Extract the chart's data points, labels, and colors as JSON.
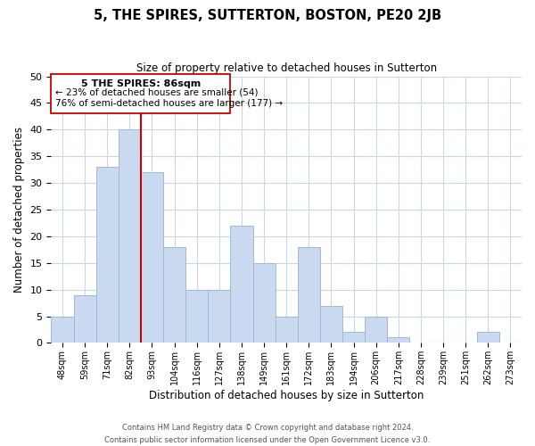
{
  "title": "5, THE SPIRES, SUTTERTON, BOSTON, PE20 2JB",
  "subtitle": "Size of property relative to detached houses in Sutterton",
  "xlabel": "Distribution of detached houses by size in Sutterton",
  "ylabel": "Number of detached properties",
  "bar_labels": [
    "48sqm",
    "59sqm",
    "71sqm",
    "82sqm",
    "93sqm",
    "104sqm",
    "116sqm",
    "127sqm",
    "138sqm",
    "149sqm",
    "161sqm",
    "172sqm",
    "183sqm",
    "194sqm",
    "206sqm",
    "217sqm",
    "228sqm",
    "239sqm",
    "251sqm",
    "262sqm",
    "273sqm"
  ],
  "bar_values": [
    5,
    9,
    33,
    40,
    32,
    18,
    10,
    10,
    22,
    15,
    5,
    18,
    7,
    2,
    5,
    1,
    0,
    0,
    0,
    2,
    0
  ],
  "bar_color": "#c9d9f0",
  "bar_edge_color": "#a0b8d8",
  "vline_color": "#cc0000",
  "vline_index": 3,
  "ylim": [
    0,
    50
  ],
  "yticks": [
    0,
    5,
    10,
    15,
    20,
    25,
    30,
    35,
    40,
    45,
    50
  ],
  "annotation_title": "5 THE SPIRES: 86sqm",
  "annotation_line1": "← 23% of detached houses are smaller (54)",
  "annotation_line2": "76% of semi-detached houses are larger (177) →",
  "footer_line1": "Contains HM Land Registry data © Crown copyright and database right 2024.",
  "footer_line2": "Contains public sector information licensed under the Open Government Licence v3.0.",
  "background_color": "#ffffff",
  "grid_color": "#c8d8e8"
}
